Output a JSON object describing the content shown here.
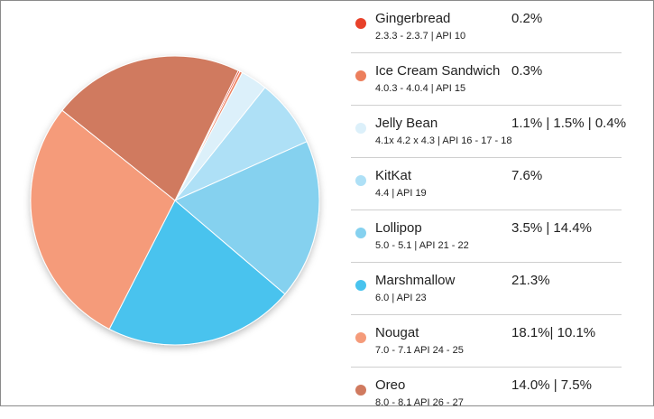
{
  "chart_data": {
    "type": "pie",
    "slices": [
      {
        "label": "Gingerbread",
        "value": 0.2,
        "color": "#e8412a"
      },
      {
        "label": "Ice Cream Sandwich",
        "value": 0.3,
        "color": "#ec7f5d"
      },
      {
        "label": "Jelly Bean",
        "value": 3.0,
        "color": "#dcf0fa"
      },
      {
        "label": "KitKat",
        "value": 7.6,
        "color": "#aee0f6"
      },
      {
        "label": "Lollipop",
        "value": 17.9,
        "color": "#85d1ef"
      },
      {
        "label": "Marshmallow",
        "value": 21.3,
        "color": "#48c3ee"
      },
      {
        "label": "Nougat",
        "value": 28.2,
        "color": "#f59b7a"
      },
      {
        "label": "Oreo",
        "value": 21.5,
        "color": "#d07a5f"
      }
    ],
    "legend": {
      "placement": "right",
      "items": [
        {
          "name": "Gingerbread",
          "sub": "2.3.3 - 2.3.7 | API 10",
          "value": "0.2%",
          "color": "#e8412a"
        },
        {
          "name": "Ice Cream Sandwich",
          "sub": "4.0.3 - 4.0.4 | API 15",
          "value": "0.3%",
          "color": "#ec7f5d"
        },
        {
          "name": "Jelly Bean",
          "sub": "4.1x 4.2 x 4.3 | API 16  - 17 - 18",
          "value": "1.1% | 1.5% | 0.4%",
          "color": "#dcf0fa"
        },
        {
          "name": "KitKat",
          "sub": "4.4 | API 19",
          "value": "7.6%",
          "color": "#aee0f6"
        },
        {
          "name": "Lollipop",
          "sub": "5.0 - 5.1 | API 21 - 22",
          "value": "3.5% | 14.4%",
          "color": "#85d1ef"
        },
        {
          "name": "Marshmallow",
          "sub": "6.0 | API 23",
          "value": "21.3%",
          "color": "#48c3ee"
        },
        {
          "name": "Nougat",
          "sub": "7.0 - 7.1 API 24 - 25",
          "value": "18.1%| 10.1%",
          "color": "#f59b7a"
        },
        {
          "name": "Oreo",
          "sub": "8.0 - 8.1 API 26 - 27",
          "value": "14.0% | 7.5%",
          "color": "#d07a5f"
        }
      ]
    }
  }
}
